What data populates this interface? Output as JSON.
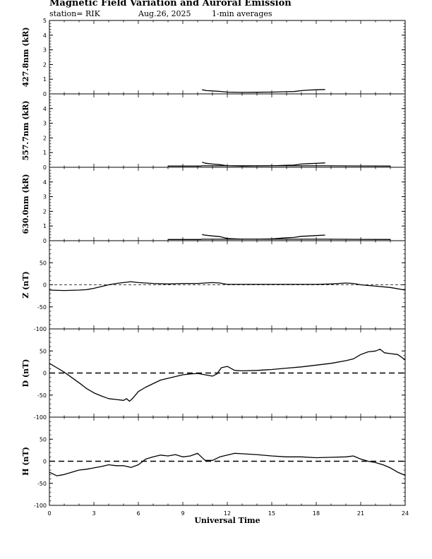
{
  "header": {
    "title": "Magnetic Field Variation and Auroral Emission",
    "station": "station= RIK",
    "date": "Aug.26, 2025",
    "avg": "1-min averages"
  },
  "chart_data": {
    "type": "line",
    "x_axis": {
      "label": "Universal Time",
      "range": [
        0,
        24
      ],
      "ticks": [
        0,
        3,
        6,
        9,
        12,
        15,
        18,
        21,
        24
      ]
    },
    "panels": [
      {
        "ylabel": "427.8nm (kR)",
        "ylim": [
          0,
          5
        ],
        "ticks": [
          0,
          1,
          2,
          3,
          4,
          5
        ],
        "zero_line": false,
        "series": [
          {
            "name": "427.8nm",
            "x": [
              10.3,
              10.6,
              11.0,
              11.5,
              12.0,
              13.0,
              14.0,
              15.0,
              16.0,
              16.5,
              17.0,
              17.5,
              18.0,
              18.6
            ],
            "y": [
              0.28,
              0.22,
              0.2,
              0.17,
              0.12,
              0.1,
              0.11,
              0.12,
              0.15,
              0.16,
              0.22,
              0.26,
              0.28,
              0.3
            ]
          }
        ]
      },
      {
        "ylabel": "557.7nm (kR)",
        "ylim": [
          0,
          5
        ],
        "ticks": [
          0,
          1,
          2,
          3,
          4
        ],
        "zero_line": false,
        "series": [
          {
            "name": "557.7nm base",
            "x": [
              8.0,
              10.2,
              10.3,
              18.7,
              23.0
            ],
            "y": [
              0.08,
              0.08,
              0.1,
              0.1,
              0.08
            ]
          },
          {
            "name": "557.7nm",
            "x": [
              10.3,
              10.5,
              11.0,
              11.5,
              12.0,
              13.0,
              14.0,
              15.0,
              16.0,
              16.5,
              17.0,
              17.5,
              18.0,
              18.6
            ],
            "y": [
              0.35,
              0.28,
              0.22,
              0.18,
              0.1,
              0.08,
              0.09,
              0.1,
              0.14,
              0.15,
              0.22,
              0.25,
              0.27,
              0.3
            ]
          }
        ]
      },
      {
        "ylabel": "630.0nm (kR)",
        "ylim": [
          0,
          5
        ],
        "ticks": [
          0,
          1,
          2,
          3,
          4
        ],
        "zero_line": false,
        "series": [
          {
            "name": "630.0nm base",
            "x": [
              8.0,
              10.2,
              10.3,
              18.7,
              23.0
            ],
            "y": [
              0.08,
              0.08,
              0.1,
              0.1,
              0.08
            ]
          },
          {
            "name": "630.0nm",
            "x": [
              10.3,
              10.5,
              11.0,
              11.5,
              12.0,
              13.0,
              14.0,
              15.0,
              16.0,
              16.5,
              17.0,
              17.5,
              18.0,
              18.6
            ],
            "y": [
              0.42,
              0.38,
              0.32,
              0.28,
              0.15,
              0.1,
              0.1,
              0.12,
              0.2,
              0.22,
              0.3,
              0.32,
              0.35,
              0.38
            ]
          }
        ]
      },
      {
        "ylabel": "Z (nT)",
        "ylim": [
          -100,
          100
        ],
        "ticks": [
          -100,
          -50,
          0,
          50
        ],
        "zero_line": true,
        "series": [
          {
            "name": "Z",
            "x": [
              0,
              1,
              2,
              2.5,
              3,
              3.5,
              4,
              4.5,
              5,
              5.5,
              6,
              7,
              8,
              9,
              10,
              11,
              11.5,
              12,
              13,
              14,
              15,
              16,
              17,
              18,
              19,
              20,
              20.5,
              21,
              22,
              23,
              24
            ],
            "y": [
              -12,
              -13,
              -12,
              -11,
              -8,
              -4,
              0,
              3,
              5,
              7,
              5,
              3,
              2,
              3,
              3,
              5,
              4,
              1,
              1,
              1,
              1,
              1,
              1,
              1,
              2,
              4,
              3,
              0,
              -3,
              -6,
              -12
            ]
          }
        ]
      },
      {
        "ylabel": "D (nT)",
        "ylim": [
          -100,
          100
        ],
        "ticks": [
          -100,
          -50,
          0,
          50
        ],
        "zero_line": true,
        "series": [
          {
            "name": "D",
            "x": [
              0,
              0.5,
              1,
              1.5,
              2,
              2.5,
              3,
              3.5,
              4,
              4.5,
              5,
              5.2,
              5.4,
              5.6,
              6,
              6.5,
              7,
              7.5,
              8,
              8.5,
              9,
              9.5,
              10,
              10.5,
              11,
              11.3,
              11.6,
              12,
              12.5,
              13,
              14,
              15,
              16,
              17,
              18,
              19,
              20,
              20.5,
              21,
              21.5,
              22,
              22.3,
              22.6,
              23,
              23.5,
              24
            ],
            "y": [
              22,
              12,
              2,
              -10,
              -22,
              -35,
              -45,
              -52,
              -58,
              -60,
              -62,
              -58,
              -64,
              -58,
              -42,
              -32,
              -24,
              -16,
              -12,
              -8,
              -4,
              -2,
              -1,
              -4,
              -7,
              -2,
              12,
              15,
              6,
              5,
              6,
              8,
              11,
              14,
              18,
              22,
              28,
              32,
              42,
              48,
              50,
              54,
              46,
              44,
              42,
              30
            ]
          }
        ]
      },
      {
        "ylabel": "H (nT)",
        "ylim": [
          -100,
          100
        ],
        "ticks": [
          -100,
          -50,
          0,
          50
        ],
        "zero_line": true,
        "series": [
          {
            "name": "H",
            "x": [
              0,
              0.5,
              1,
              1.5,
              2,
              2.5,
              3,
              3.5,
              4,
              4.5,
              5,
              5.5,
              6,
              6.5,
              7,
              7.5,
              8,
              8.5,
              9,
              9.5,
              10,
              10.5,
              11,
              11.5,
              12,
              12.5,
              13,
              14,
              15,
              16,
              17,
              18,
              19,
              20,
              20.5,
              21,
              21.5,
              22,
              22.5,
              23,
              23.5,
              24
            ],
            "y": [
              -25,
              -33,
              -30,
              -25,
              -20,
              -18,
              -15,
              -12,
              -8,
              -10,
              -10,
              -14,
              -8,
              5,
              10,
              14,
              12,
              15,
              10,
              12,
              18,
              2,
              2,
              10,
              14,
              18,
              17,
              15,
              12,
              10,
              10,
              8,
              9,
              10,
              12,
              5,
              0,
              -3,
              -8,
              -15,
              -25,
              -32
            ]
          }
        ]
      }
    ]
  }
}
